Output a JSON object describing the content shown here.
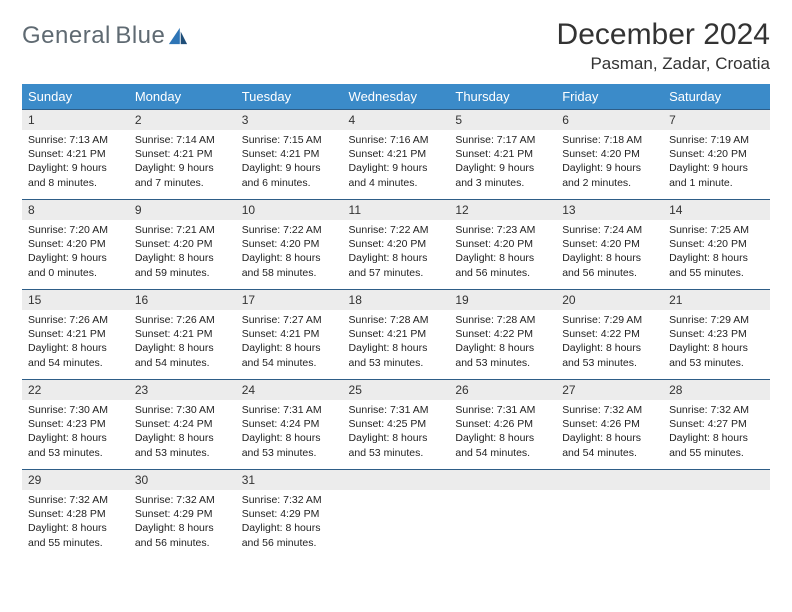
{
  "logo": {
    "word1": "General",
    "word2": "Blue"
  },
  "title": "December 2024",
  "location": "Pasman, Zadar, Croatia",
  "colors": {
    "header_bar": "#3b8bc9",
    "daynum_bg": "#ececec",
    "rule": "#2e5d87",
    "logo_gray": "#5f6a72",
    "logo_blue": "#2e75b6"
  },
  "weekdays": [
    "Sunday",
    "Monday",
    "Tuesday",
    "Wednesday",
    "Thursday",
    "Friday",
    "Saturday"
  ],
  "weeks": [
    [
      {
        "n": "1",
        "sr": "Sunrise: 7:13 AM",
        "ss": "Sunset: 4:21 PM",
        "dl1": "Daylight: 9 hours",
        "dl2": "and 8 minutes."
      },
      {
        "n": "2",
        "sr": "Sunrise: 7:14 AM",
        "ss": "Sunset: 4:21 PM",
        "dl1": "Daylight: 9 hours",
        "dl2": "and 7 minutes."
      },
      {
        "n": "3",
        "sr": "Sunrise: 7:15 AM",
        "ss": "Sunset: 4:21 PM",
        "dl1": "Daylight: 9 hours",
        "dl2": "and 6 minutes."
      },
      {
        "n": "4",
        "sr": "Sunrise: 7:16 AM",
        "ss": "Sunset: 4:21 PM",
        "dl1": "Daylight: 9 hours",
        "dl2": "and 4 minutes."
      },
      {
        "n": "5",
        "sr": "Sunrise: 7:17 AM",
        "ss": "Sunset: 4:21 PM",
        "dl1": "Daylight: 9 hours",
        "dl2": "and 3 minutes."
      },
      {
        "n": "6",
        "sr": "Sunrise: 7:18 AM",
        "ss": "Sunset: 4:20 PM",
        "dl1": "Daylight: 9 hours",
        "dl2": "and 2 minutes."
      },
      {
        "n": "7",
        "sr": "Sunrise: 7:19 AM",
        "ss": "Sunset: 4:20 PM",
        "dl1": "Daylight: 9 hours",
        "dl2": "and 1 minute."
      }
    ],
    [
      {
        "n": "8",
        "sr": "Sunrise: 7:20 AM",
        "ss": "Sunset: 4:20 PM",
        "dl1": "Daylight: 9 hours",
        "dl2": "and 0 minutes."
      },
      {
        "n": "9",
        "sr": "Sunrise: 7:21 AM",
        "ss": "Sunset: 4:20 PM",
        "dl1": "Daylight: 8 hours",
        "dl2": "and 59 minutes."
      },
      {
        "n": "10",
        "sr": "Sunrise: 7:22 AM",
        "ss": "Sunset: 4:20 PM",
        "dl1": "Daylight: 8 hours",
        "dl2": "and 58 minutes."
      },
      {
        "n": "11",
        "sr": "Sunrise: 7:22 AM",
        "ss": "Sunset: 4:20 PM",
        "dl1": "Daylight: 8 hours",
        "dl2": "and 57 minutes."
      },
      {
        "n": "12",
        "sr": "Sunrise: 7:23 AM",
        "ss": "Sunset: 4:20 PM",
        "dl1": "Daylight: 8 hours",
        "dl2": "and 56 minutes."
      },
      {
        "n": "13",
        "sr": "Sunrise: 7:24 AM",
        "ss": "Sunset: 4:20 PM",
        "dl1": "Daylight: 8 hours",
        "dl2": "and 56 minutes."
      },
      {
        "n": "14",
        "sr": "Sunrise: 7:25 AM",
        "ss": "Sunset: 4:20 PM",
        "dl1": "Daylight: 8 hours",
        "dl2": "and 55 minutes."
      }
    ],
    [
      {
        "n": "15",
        "sr": "Sunrise: 7:26 AM",
        "ss": "Sunset: 4:21 PM",
        "dl1": "Daylight: 8 hours",
        "dl2": "and 54 minutes."
      },
      {
        "n": "16",
        "sr": "Sunrise: 7:26 AM",
        "ss": "Sunset: 4:21 PM",
        "dl1": "Daylight: 8 hours",
        "dl2": "and 54 minutes."
      },
      {
        "n": "17",
        "sr": "Sunrise: 7:27 AM",
        "ss": "Sunset: 4:21 PM",
        "dl1": "Daylight: 8 hours",
        "dl2": "and 54 minutes."
      },
      {
        "n": "18",
        "sr": "Sunrise: 7:28 AM",
        "ss": "Sunset: 4:21 PM",
        "dl1": "Daylight: 8 hours",
        "dl2": "and 53 minutes."
      },
      {
        "n": "19",
        "sr": "Sunrise: 7:28 AM",
        "ss": "Sunset: 4:22 PM",
        "dl1": "Daylight: 8 hours",
        "dl2": "and 53 minutes."
      },
      {
        "n": "20",
        "sr": "Sunrise: 7:29 AM",
        "ss": "Sunset: 4:22 PM",
        "dl1": "Daylight: 8 hours",
        "dl2": "and 53 minutes."
      },
      {
        "n": "21",
        "sr": "Sunrise: 7:29 AM",
        "ss": "Sunset: 4:23 PM",
        "dl1": "Daylight: 8 hours",
        "dl2": "and 53 minutes."
      }
    ],
    [
      {
        "n": "22",
        "sr": "Sunrise: 7:30 AM",
        "ss": "Sunset: 4:23 PM",
        "dl1": "Daylight: 8 hours",
        "dl2": "and 53 minutes."
      },
      {
        "n": "23",
        "sr": "Sunrise: 7:30 AM",
        "ss": "Sunset: 4:24 PM",
        "dl1": "Daylight: 8 hours",
        "dl2": "and 53 minutes."
      },
      {
        "n": "24",
        "sr": "Sunrise: 7:31 AM",
        "ss": "Sunset: 4:24 PM",
        "dl1": "Daylight: 8 hours",
        "dl2": "and 53 minutes."
      },
      {
        "n": "25",
        "sr": "Sunrise: 7:31 AM",
        "ss": "Sunset: 4:25 PM",
        "dl1": "Daylight: 8 hours",
        "dl2": "and 53 minutes."
      },
      {
        "n": "26",
        "sr": "Sunrise: 7:31 AM",
        "ss": "Sunset: 4:26 PM",
        "dl1": "Daylight: 8 hours",
        "dl2": "and 54 minutes."
      },
      {
        "n": "27",
        "sr": "Sunrise: 7:32 AM",
        "ss": "Sunset: 4:26 PM",
        "dl1": "Daylight: 8 hours",
        "dl2": "and 54 minutes."
      },
      {
        "n": "28",
        "sr": "Sunrise: 7:32 AM",
        "ss": "Sunset: 4:27 PM",
        "dl1": "Daylight: 8 hours",
        "dl2": "and 55 minutes."
      }
    ],
    [
      {
        "n": "29",
        "sr": "Sunrise: 7:32 AM",
        "ss": "Sunset: 4:28 PM",
        "dl1": "Daylight: 8 hours",
        "dl2": "and 55 minutes."
      },
      {
        "n": "30",
        "sr": "Sunrise: 7:32 AM",
        "ss": "Sunset: 4:29 PM",
        "dl1": "Daylight: 8 hours",
        "dl2": "and 56 minutes."
      },
      {
        "n": "31",
        "sr": "Sunrise: 7:32 AM",
        "ss": "Sunset: 4:29 PM",
        "dl1": "Daylight: 8 hours",
        "dl2": "and 56 minutes."
      },
      {
        "empty": true
      },
      {
        "empty": true
      },
      {
        "empty": true
      },
      {
        "empty": true
      }
    ]
  ]
}
